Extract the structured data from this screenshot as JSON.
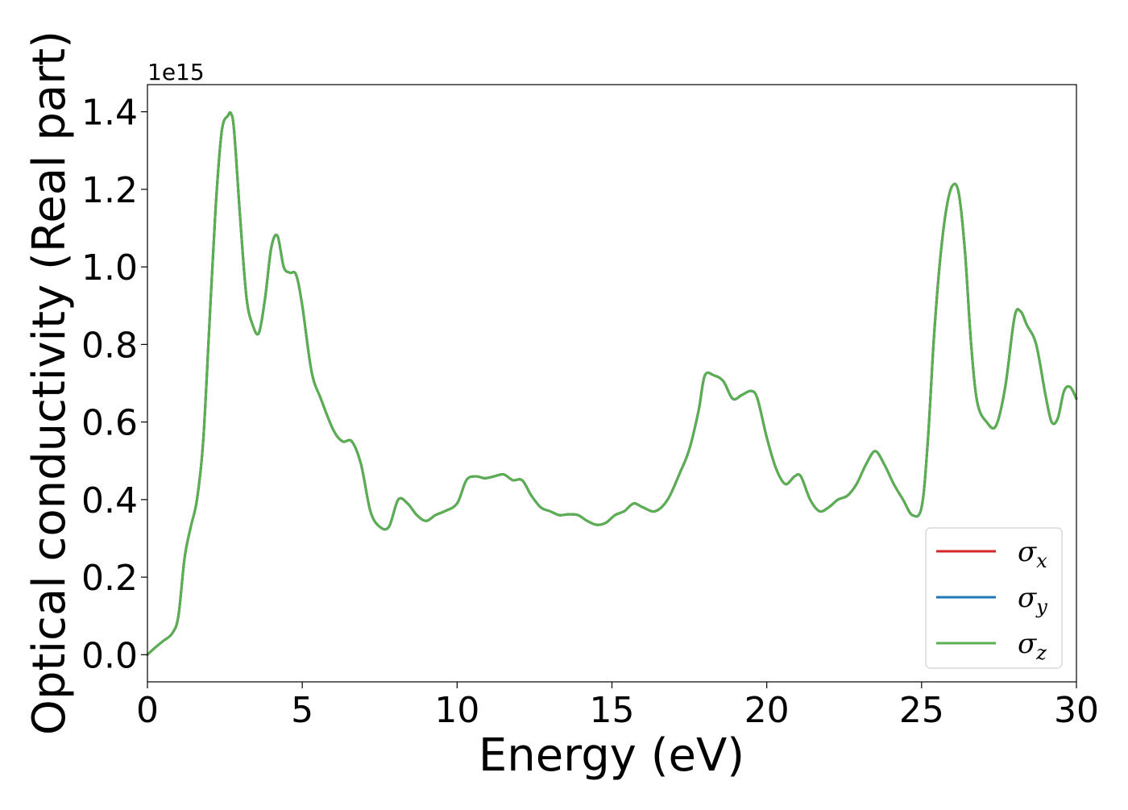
{
  "chart_data": {
    "type": "line",
    "xlabel": "Energy (eV)",
    "ylabel": "Optical conductivity (Real part)",
    "y_offset_label": "1e15",
    "xlim": [
      0,
      30
    ],
    "ylim": [
      -0.07,
      1.47
    ],
    "x_ticks": [
      0,
      5,
      10,
      15,
      20,
      25,
      30
    ],
    "x_tick_labels": [
      "0",
      "5",
      "10",
      "15",
      "20",
      "25",
      "30"
    ],
    "y_ticks": [
      0.0,
      0.2,
      0.4,
      0.6,
      0.8,
      1.0,
      1.2,
      1.4
    ],
    "y_tick_labels": [
      "0.0",
      "0.2",
      "0.4",
      "0.6",
      "0.8",
      "1.0",
      "1.2",
      "1.4"
    ],
    "grid": false,
    "legend_position": "lower-right",
    "legend": [
      {
        "symbol": "σ",
        "subscript": "x",
        "color": "#d62728"
      },
      {
        "symbol": "σ",
        "subscript": "y",
        "color": "#1f77b4"
      },
      {
        "symbol": "σ",
        "subscript": "z",
        "color": "#5aaf50"
      }
    ],
    "x": [
      0,
      0.2,
      0.5,
      0.8,
      1.0,
      1.2,
      1.4,
      1.6,
      1.8,
      2.0,
      2.2,
      2.4,
      2.6,
      2.7,
      2.8,
      3.0,
      3.2,
      3.4,
      3.6,
      3.8,
      4.0,
      4.2,
      4.4,
      4.6,
      4.8,
      5.0,
      5.3,
      5.6,
      6.0,
      6.3,
      6.6,
      6.9,
      7.2,
      7.5,
      7.8,
      8.1,
      8.4,
      8.7,
      9.0,
      9.3,
      9.6,
      10.0,
      10.3,
      10.6,
      10.9,
      11.2,
      11.5,
      11.8,
      12.1,
      12.4,
      12.7,
      13.0,
      13.3,
      13.6,
      13.9,
      14.2,
      14.5,
      14.8,
      15.1,
      15.4,
      15.7,
      16.0,
      16.4,
      16.8,
      17.2,
      17.5,
      17.8,
      18.0,
      18.3,
      18.6,
      18.9,
      19.2,
      19.5,
      19.7,
      20.0,
      20.3,
      20.6,
      20.9,
      21.1,
      21.4,
      21.7,
      22.0,
      22.3,
      22.6,
      22.9,
      23.2,
      23.5,
      23.8,
      24.1,
      24.4,
      24.7,
      25.0,
      25.2,
      25.4,
      25.6,
      25.8,
      26.0,
      26.2,
      26.4,
      26.6,
      26.8,
      27.1,
      27.4,
      27.7,
      28.0,
      28.2,
      28.4,
      28.7,
      29.0,
      29.2,
      29.4,
      29.6,
      29.8,
      30.0
    ],
    "series": [
      {
        "name": "σx",
        "color": "#d62728",
        "values": [
          0.0,
          0.015,
          0.035,
          0.055,
          0.1,
          0.25,
          0.33,
          0.4,
          0.55,
          0.85,
          1.15,
          1.35,
          1.39,
          1.395,
          1.35,
          1.12,
          0.92,
          0.85,
          0.83,
          0.92,
          1.05,
          1.08,
          1.0,
          0.985,
          0.98,
          0.9,
          0.73,
          0.66,
          0.58,
          0.55,
          0.55,
          0.49,
          0.37,
          0.33,
          0.33,
          0.4,
          0.39,
          0.36,
          0.345,
          0.36,
          0.37,
          0.39,
          0.45,
          0.46,
          0.455,
          0.46,
          0.465,
          0.45,
          0.45,
          0.41,
          0.38,
          0.37,
          0.36,
          0.362,
          0.36,
          0.345,
          0.335,
          0.34,
          0.36,
          0.37,
          0.39,
          0.38,
          0.37,
          0.4,
          0.47,
          0.53,
          0.63,
          0.72,
          0.72,
          0.705,
          0.66,
          0.67,
          0.68,
          0.66,
          0.56,
          0.48,
          0.44,
          0.46,
          0.46,
          0.4,
          0.37,
          0.38,
          0.4,
          0.41,
          0.44,
          0.49,
          0.525,
          0.49,
          0.44,
          0.4,
          0.36,
          0.38,
          0.55,
          0.82,
          1.02,
          1.15,
          1.21,
          1.19,
          1.04,
          0.8,
          0.65,
          0.6,
          0.59,
          0.69,
          0.87,
          0.885,
          0.85,
          0.8,
          0.67,
          0.6,
          0.61,
          0.68,
          0.69,
          0.66
        ]
      },
      {
        "name": "σy",
        "color": "#1f77b4",
        "values": [
          0.0,
          0.015,
          0.035,
          0.055,
          0.1,
          0.25,
          0.33,
          0.4,
          0.55,
          0.85,
          1.15,
          1.35,
          1.39,
          1.395,
          1.35,
          1.12,
          0.92,
          0.85,
          0.83,
          0.92,
          1.05,
          1.08,
          1.0,
          0.985,
          0.98,
          0.9,
          0.73,
          0.66,
          0.58,
          0.55,
          0.55,
          0.49,
          0.37,
          0.33,
          0.33,
          0.4,
          0.39,
          0.36,
          0.345,
          0.36,
          0.37,
          0.39,
          0.45,
          0.46,
          0.455,
          0.46,
          0.465,
          0.45,
          0.45,
          0.41,
          0.38,
          0.37,
          0.36,
          0.362,
          0.36,
          0.345,
          0.335,
          0.34,
          0.36,
          0.37,
          0.39,
          0.38,
          0.37,
          0.4,
          0.47,
          0.53,
          0.63,
          0.72,
          0.72,
          0.705,
          0.66,
          0.67,
          0.68,
          0.66,
          0.56,
          0.48,
          0.44,
          0.46,
          0.46,
          0.4,
          0.37,
          0.38,
          0.4,
          0.41,
          0.44,
          0.49,
          0.525,
          0.49,
          0.44,
          0.4,
          0.36,
          0.38,
          0.55,
          0.82,
          1.02,
          1.15,
          1.21,
          1.19,
          1.04,
          0.8,
          0.65,
          0.6,
          0.59,
          0.69,
          0.87,
          0.885,
          0.85,
          0.8,
          0.67,
          0.6,
          0.61,
          0.68,
          0.69,
          0.66
        ]
      },
      {
        "name": "σz",
        "color": "#5aaf50",
        "values": [
          0.0,
          0.015,
          0.035,
          0.055,
          0.1,
          0.25,
          0.33,
          0.4,
          0.55,
          0.85,
          1.15,
          1.35,
          1.39,
          1.395,
          1.35,
          1.12,
          0.92,
          0.85,
          0.83,
          0.92,
          1.05,
          1.08,
          1.0,
          0.985,
          0.98,
          0.9,
          0.73,
          0.66,
          0.58,
          0.55,
          0.55,
          0.49,
          0.37,
          0.33,
          0.33,
          0.4,
          0.39,
          0.36,
          0.345,
          0.36,
          0.37,
          0.39,
          0.45,
          0.46,
          0.455,
          0.46,
          0.465,
          0.45,
          0.45,
          0.41,
          0.38,
          0.37,
          0.36,
          0.362,
          0.36,
          0.345,
          0.335,
          0.34,
          0.36,
          0.37,
          0.39,
          0.38,
          0.37,
          0.4,
          0.47,
          0.53,
          0.63,
          0.72,
          0.72,
          0.705,
          0.66,
          0.67,
          0.68,
          0.66,
          0.56,
          0.48,
          0.44,
          0.46,
          0.46,
          0.4,
          0.37,
          0.38,
          0.4,
          0.41,
          0.44,
          0.49,
          0.525,
          0.49,
          0.44,
          0.4,
          0.36,
          0.38,
          0.55,
          0.82,
          1.02,
          1.15,
          1.21,
          1.19,
          1.04,
          0.8,
          0.65,
          0.6,
          0.59,
          0.69,
          0.87,
          0.885,
          0.85,
          0.8,
          0.67,
          0.6,
          0.61,
          0.68,
          0.69,
          0.66
        ]
      }
    ]
  }
}
